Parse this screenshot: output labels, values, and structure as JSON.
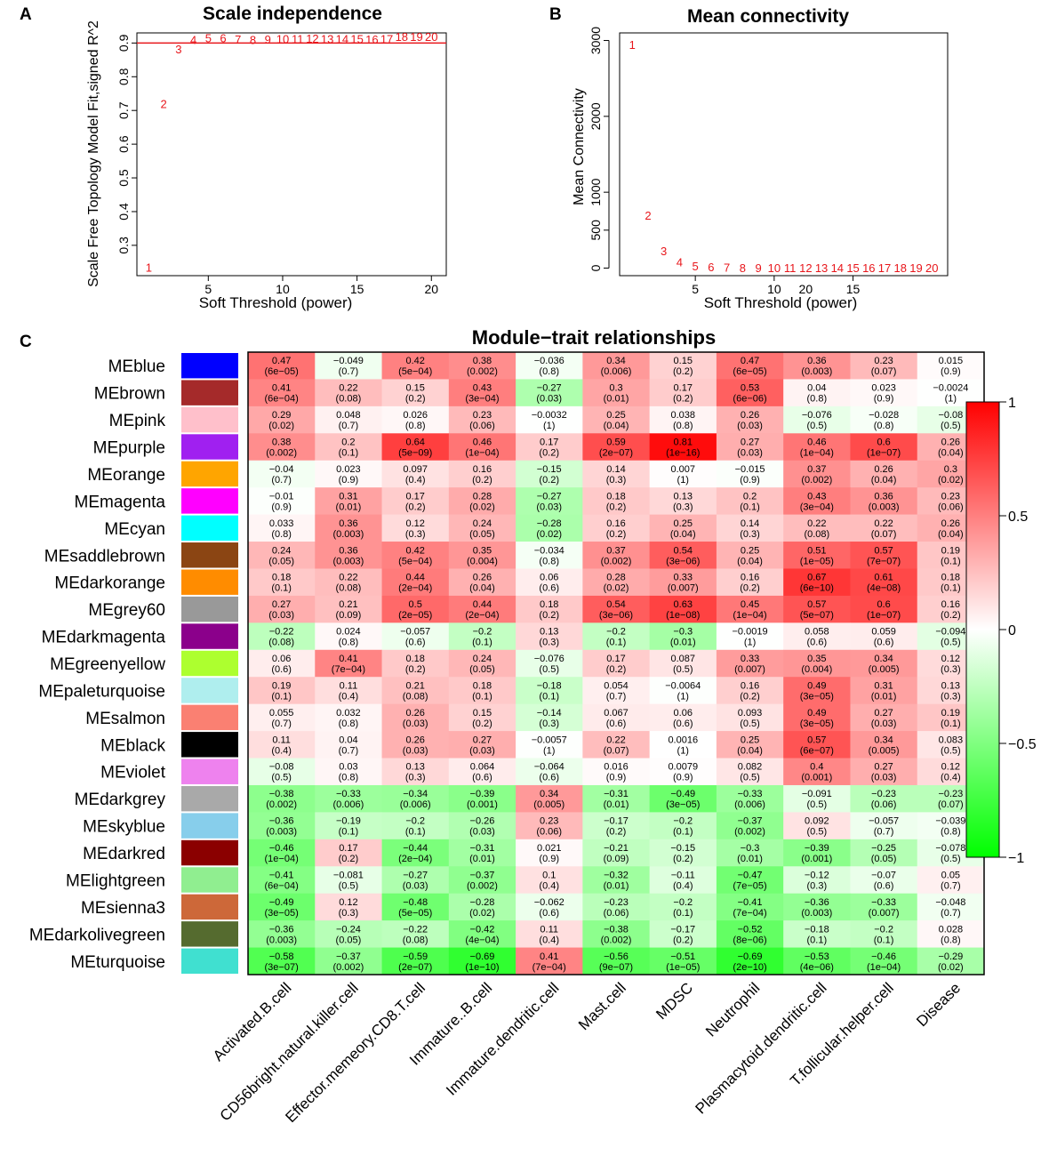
{
  "panels": {
    "a": {
      "label": "A"
    },
    "b": {
      "label": "B"
    },
    "c": {
      "label": "C"
    }
  },
  "colors": {
    "point": "#e8161b",
    "threshold_line": "#e8161b",
    "high": "#ff0000",
    "mid": "#ffffff",
    "low": "#00ff00"
  },
  "chart_data": [
    {
      "id": "scale-independence",
      "type": "scatter",
      "title": "Scale independence",
      "xlabel": "Soft Threshold (power)",
      "ylabel": "Scale Free Topology Model Fit,signed R^2",
      "xlim": [
        0.2,
        21
      ],
      "ylim": [
        0.21,
        0.93
      ],
      "xticks": [
        5,
        10,
        15,
        20
      ],
      "yticks": [
        0.3,
        0.4,
        0.5,
        0.6,
        0.7,
        0.8,
        0.9
      ],
      "threshold": 0.9,
      "points": [
        {
          "x": 1,
          "y": 0.235,
          "label": "1"
        },
        {
          "x": 2,
          "y": 0.72,
          "label": "2"
        },
        {
          "x": 3,
          "y": 0.882,
          "label": "3"
        },
        {
          "x": 4,
          "y": 0.91,
          "label": "4"
        },
        {
          "x": 5,
          "y": 0.915,
          "label": "5"
        },
        {
          "x": 6,
          "y": 0.915,
          "label": "6"
        },
        {
          "x": 7,
          "y": 0.912,
          "label": "7"
        },
        {
          "x": 8,
          "y": 0.91,
          "label": "8"
        },
        {
          "x": 9,
          "y": 0.912,
          "label": "9"
        },
        {
          "x": 10,
          "y": 0.913,
          "label": "10"
        },
        {
          "x": 11,
          "y": 0.913,
          "label": "11"
        },
        {
          "x": 12,
          "y": 0.914,
          "label": "12"
        },
        {
          "x": 13,
          "y": 0.913,
          "label": "13"
        },
        {
          "x": 14,
          "y": 0.913,
          "label": "14"
        },
        {
          "x": 15,
          "y": 0.913,
          "label": "15"
        },
        {
          "x": 16,
          "y": 0.912,
          "label": "16"
        },
        {
          "x": 17,
          "y": 0.913,
          "label": "17"
        },
        {
          "x": 18,
          "y": 0.92,
          "label": "18"
        },
        {
          "x": 19,
          "y": 0.92,
          "label": "19"
        },
        {
          "x": 20,
          "y": 0.92,
          "label": "20"
        }
      ]
    },
    {
      "id": "mean-connectivity",
      "type": "scatter",
      "title": "Mean connectivity",
      "xlabel": "Soft Threshold (power)",
      "ylabel": "Mean Connectivity",
      "xlim": [
        0.2,
        21
      ],
      "ylim": [
        -100,
        3100
      ],
      "xticks": [
        5,
        10,
        15
      ],
      "yticks": [
        0,
        500,
        1000,
        2000,
        3000
      ],
      "points": [
        {
          "x": 1,
          "y": 2950,
          "label": "1"
        },
        {
          "x": 2,
          "y": 700,
          "label": "2"
        },
        {
          "x": 3,
          "y": 230,
          "label": "3"
        },
        {
          "x": 4,
          "y": 80,
          "label": "4"
        },
        {
          "x": 5,
          "y": 30,
          "label": "5"
        },
        {
          "x": 6,
          "y": 15,
          "label": "6"
        },
        {
          "x": 7,
          "y": 10,
          "label": "7"
        },
        {
          "x": 8,
          "y": 8,
          "label": "8"
        },
        {
          "x": 9,
          "y": 6,
          "label": "9"
        },
        {
          "x": 10,
          "y": 5,
          "label": "10"
        },
        {
          "x": 11,
          "y": 5,
          "label": "11"
        },
        {
          "x": 12,
          "y": 5,
          "label": "12"
        },
        {
          "x": 13,
          "y": 5,
          "label": "13"
        },
        {
          "x": 14,
          "y": 5,
          "label": "14"
        },
        {
          "x": 15,
          "y": 5,
          "label": "15"
        },
        {
          "x": 16,
          "y": 5,
          "label": "16"
        },
        {
          "x": 17,
          "y": 5,
          "label": "17"
        },
        {
          "x": 18,
          "y": 5,
          "label": "18"
        },
        {
          "x": 19,
          "y": 5,
          "label": "19"
        },
        {
          "x": 20,
          "y": 5,
          "label": "20"
        }
      ],
      "extra_xtick_labels": [
        "20"
      ]
    },
    {
      "id": "module-trait",
      "type": "heatmap",
      "title": "Module−trait relationships",
      "colorbar": {
        "min": -1,
        "max": 1,
        "ticks": [
          "1",
          "0.5",
          "0",
          "−0.5",
          "−1"
        ]
      },
      "columns": [
        "Activated.B.cell",
        "CD56bright.natural.killer.cell",
        "Effector.memeory.CD8.T.cell",
        "Immature..B.cell",
        "Immature.dendritic.cell",
        "Mast.cell",
        "MDSC",
        "Neutrophil",
        "Plasmacytoid.dendritic.cell",
        "T.follicular.helper.cell",
        "Disease"
      ],
      "rows": [
        {
          "name": "MEblue",
          "color": "#0000ff",
          "r": [
            "0.47",
            "−0.049",
            "0.42",
            "0.38",
            "−0.036",
            "0.34",
            "0.15",
            "0.47",
            "0.36",
            "0.23",
            "0.015"
          ],
          "p": [
            "(6e−05)",
            "(0.7)",
            "(5e−04)",
            "(0.002)",
            "(0.8)",
            "(0.006)",
            "(0.2)",
            "(6e−05)",
            "(0.003)",
            "(0.07)",
            "(0.9)"
          ]
        },
        {
          "name": "MEbrown",
          "color": "#a52a2a",
          "r": [
            "0.41",
            "0.22",
            "0.15",
            "0.43",
            "−0.27",
            "0.3",
            "0.17",
            "0.53",
            "0.04",
            "0.023",
            "−0.0024"
          ],
          "p": [
            "(6e−04)",
            "(0.08)",
            "(0.2)",
            "(3e−04)",
            "(0.03)",
            "(0.01)",
            "(0.2)",
            "(6e−06)",
            "(0.8)",
            "(0.9)",
            "(1)"
          ]
        },
        {
          "name": "MEpink",
          "color": "#ffc0cb",
          "r": [
            "0.29",
            "0.048",
            "0.026",
            "0.23",
            "−0.0032",
            "0.25",
            "0.038",
            "0.26",
            "−0.076",
            "−0.028",
            "−0.08"
          ],
          "p": [
            "(0.02)",
            "(0.7)",
            "(0.8)",
            "(0.06)",
            "(1)",
            "(0.04)",
            "(0.8)",
            "(0.03)",
            "(0.5)",
            "(0.8)",
            "(0.5)"
          ]
        },
        {
          "name": "MEpurple",
          "color": "#a020f0",
          "r": [
            "0.38",
            "0.2",
            "0.64",
            "0.46",
            "0.17",
            "0.59",
            "0.81",
            "0.27",
            "0.46",
            "0.6",
            "0.26"
          ],
          "p": [
            "(0.002)",
            "(0.1)",
            "(5e−09)",
            "(1e−04)",
            "(0.2)",
            "(2e−07)",
            "(1e−16)",
            "(0.03)",
            "(1e−04)",
            "(1e−07)",
            "(0.04)"
          ]
        },
        {
          "name": "MEorange",
          "color": "#ffa500",
          "r": [
            "−0.04",
            "0.023",
            "0.097",
            "0.16",
            "−0.15",
            "0.14",
            "0.007",
            "−0.015",
            "0.37",
            "0.26",
            "0.3"
          ],
          "p": [
            "(0.7)",
            "(0.9)",
            "(0.4)",
            "(0.2)",
            "(0.2)",
            "(0.3)",
            "(1)",
            "(0.9)",
            "(0.002)",
            "(0.04)",
            "(0.02)"
          ]
        },
        {
          "name": "MEmagenta",
          "color": "#ff00ff",
          "r": [
            "−0.01",
            "0.31",
            "0.17",
            "0.28",
            "−0.27",
            "0.18",
            "0.13",
            "0.2",
            "0.43",
            "0.36",
            "0.23"
          ],
          "p": [
            "(0.9)",
            "(0.01)",
            "(0.2)",
            "(0.02)",
            "(0.03)",
            "(0.2)",
            "(0.3)",
            "(0.1)",
            "(3e−04)",
            "(0.003)",
            "(0.06)"
          ]
        },
        {
          "name": "MEcyan",
          "color": "#00ffff",
          "r": [
            "0.033",
            "0.36",
            "0.12",
            "0.24",
            "−0.28",
            "0.16",
            "0.25",
            "0.14",
            "0.22",
            "0.22",
            "0.26"
          ],
          "p": [
            "(0.8)",
            "(0.003)",
            "(0.3)",
            "(0.05)",
            "(0.02)",
            "(0.2)",
            "(0.04)",
            "(0.3)",
            "(0.08)",
            "(0.07)",
            "(0.04)"
          ]
        },
        {
          "name": "MEsaddlebrown",
          "color": "#8b4513",
          "r": [
            "0.24",
            "0.36",
            "0.42",
            "0.35",
            "−0.034",
            "0.37",
            "0.54",
            "0.25",
            "0.51",
            "0.57",
            "0.19"
          ],
          "p": [
            "(0.05)",
            "(0.003)",
            "(5e−04)",
            "(0.004)",
            "(0.8)",
            "(0.002)",
            "(3e−06)",
            "(0.04)",
            "(1e−05)",
            "(7e−07)",
            "(0.1)"
          ]
        },
        {
          "name": "MEdarkorange",
          "color": "#ff8c00",
          "r": [
            "0.18",
            "0.22",
            "0.44",
            "0.26",
            "0.06",
            "0.28",
            "0.33",
            "0.16",
            "0.67",
            "0.61",
            "0.18"
          ],
          "p": [
            "(0.1)",
            "(0.08)",
            "(2e−04)",
            "(0.04)",
            "(0.6)",
            "(0.02)",
            "(0.007)",
            "(0.2)",
            "(6e−10)",
            "(4e−08)",
            "(0.1)"
          ]
        },
        {
          "name": "MEgrey60",
          "color": "#999999",
          "r": [
            "0.27",
            "0.21",
            "0.5",
            "0.44",
            "0.18",
            "0.54",
            "0.63",
            "0.45",
            "0.57",
            "0.6",
            "0.16"
          ],
          "p": [
            "(0.03)",
            "(0.09)",
            "(2e−05)",
            "(2e−04)",
            "(0.2)",
            "(3e−06)",
            "(1e−08)",
            "(1e−04)",
            "(5e−07)",
            "(1e−07)",
            "(0.2)"
          ]
        },
        {
          "name": "MEdarkmagenta",
          "color": "#8b008b",
          "r": [
            "−0.22",
            "0.024",
            "−0.057",
            "−0.2",
            "0.13",
            "−0.2",
            "−0.3",
            "−0.0019",
            "0.058",
            "0.059",
            "−0.094"
          ],
          "p": [
            "(0.08)",
            "(0.8)",
            "(0.6)",
            "(0.1)",
            "(0.3)",
            "(0.1)",
            "(0.01)",
            "(1)",
            "(0.6)",
            "(0.6)",
            "(0.5)"
          ]
        },
        {
          "name": "MEgreenyellow",
          "color": "#adff2f",
          "r": [
            "0.06",
            "0.41",
            "0.18",
            "0.24",
            "−0.076",
            "0.17",
            "0.087",
            "0.33",
            "0.35",
            "0.34",
            "0.12"
          ],
          "p": [
            "(0.6)",
            "(7e−04)",
            "(0.2)",
            "(0.05)",
            "(0.5)",
            "(0.2)",
            "(0.5)",
            "(0.007)",
            "(0.004)",
            "(0.005)",
            "(0.3)"
          ]
        },
        {
          "name": "MEpaleturquoise",
          "color": "#afeeee",
          "r": [
            "0.19",
            "0.11",
            "0.21",
            "0.18",
            "−0.18",
            "0.054",
            "−0.0064",
            "0.16",
            "0.49",
            "0.31",
            "0.13"
          ],
          "p": [
            "(0.1)",
            "(0.4)",
            "(0.08)",
            "(0.1)",
            "(0.1)",
            "(0.7)",
            "(1)",
            "(0.2)",
            "(3e−05)",
            "(0.01)",
            "(0.3)"
          ]
        },
        {
          "name": "MEsalmon",
          "color": "#fa8072",
          "r": [
            "0.055",
            "0.032",
            "0.26",
            "0.15",
            "−0.14",
            "0.067",
            "0.06",
            "0.093",
            "0.49",
            "0.27",
            "0.19"
          ],
          "p": [
            "(0.7)",
            "(0.8)",
            "(0.03)",
            "(0.2)",
            "(0.3)",
            "(0.6)",
            "(0.6)",
            "(0.5)",
            "(3e−05)",
            "(0.03)",
            "(0.1)"
          ]
        },
        {
          "name": "MEblack",
          "color": "#000000",
          "r": [
            "0.11",
            "0.04",
            "0.26",
            "0.27",
            "−0.0057",
            "0.22",
            "0.0016",
            "0.25",
            "0.57",
            "0.34",
            "0.083"
          ],
          "p": [
            "(0.4)",
            "(0.7)",
            "(0.03)",
            "(0.03)",
            "(1)",
            "(0.07)",
            "(1)",
            "(0.04)",
            "(6e−07)",
            "(0.005)",
            "(0.5)"
          ]
        },
        {
          "name": "MEviolet",
          "color": "#ee82ee",
          "r": [
            "−0.08",
            "0.03",
            "0.13",
            "0.064",
            "−0.064",
            "0.016",
            "0.0079",
            "0.082",
            "0.4",
            "0.27",
            "0.12"
          ],
          "p": [
            "(0.5)",
            "(0.8)",
            "(0.3)",
            "(0.6)",
            "(0.6)",
            "(0.9)",
            "(0.9)",
            "(0.5)",
            "(0.001)",
            "(0.03)",
            "(0.4)"
          ]
        },
        {
          "name": "MEdarkgrey",
          "color": "#a9a9a9",
          "r": [
            "−0.38",
            "−0.33",
            "−0.34",
            "−0.39",
            "0.34",
            "−0.31",
            "−0.49",
            "−0.33",
            "−0.091",
            "−0.23",
            "−0.23"
          ],
          "p": [
            "(0.002)",
            "(0.006)",
            "(0.006)",
            "(0.001)",
            "(0.005)",
            "(0.01)",
            "(3e−05)",
            "(0.006)",
            "(0.5)",
            "(0.06)",
            "(0.07)"
          ]
        },
        {
          "name": "MEskyblue",
          "color": "#87ceeb",
          "r": [
            "−0.36",
            "−0.19",
            "−0.2",
            "−0.26",
            "0.23",
            "−0.17",
            "−0.2",
            "−0.37",
            "0.092",
            "−0.057",
            "−0.039"
          ],
          "p": [
            "(0.003)",
            "(0.1)",
            "(0.1)",
            "(0.03)",
            "(0.06)",
            "(0.2)",
            "(0.1)",
            "(0.002)",
            "(0.5)",
            "(0.7)",
            "(0.8)"
          ]
        },
        {
          "name": "MEdarkred",
          "color": "#8b0000",
          "r": [
            "−0.46",
            "0.17",
            "−0.44",
            "−0.31",
            "0.021",
            "−0.21",
            "−0.15",
            "−0.3",
            "−0.39",
            "−0.25",
            "−0.078"
          ],
          "p": [
            "(1e−04)",
            "(0.2)",
            "(2e−04)",
            "(0.01)",
            "(0.9)",
            "(0.09)",
            "(0.2)",
            "(0.01)",
            "(0.001)",
            "(0.05)",
            "(0.5)"
          ]
        },
        {
          "name": "MElightgreen",
          "color": "#90ee90",
          "r": [
            "−0.41",
            "−0.081",
            "−0.27",
            "−0.37",
            "0.1",
            "−0.32",
            "−0.11",
            "−0.47",
            "−0.12",
            "−0.07",
            "0.05"
          ],
          "p": [
            "(6e−04)",
            "(0.5)",
            "(0.03)",
            "(0.002)",
            "(0.4)",
            "(0.01)",
            "(0.4)",
            "(7e−05)",
            "(0.3)",
            "(0.6)",
            "(0.7)"
          ]
        },
        {
          "name": "MEsienna3",
          "color": "#cd6839",
          "r": [
            "−0.49",
            "0.12",
            "−0.48",
            "−0.28",
            "−0.062",
            "−0.23",
            "−0.2",
            "−0.41",
            "−0.36",
            "−0.33",
            "−0.048"
          ],
          "p": [
            "(3e−05)",
            "(0.3)",
            "(5e−05)",
            "(0.02)",
            "(0.6)",
            "(0.06)",
            "(0.1)",
            "(7e−04)",
            "(0.003)",
            "(0.007)",
            "(0.7)"
          ]
        },
        {
          "name": "MEdarkolivegreen",
          "color": "#556b2f",
          "r": [
            "−0.36",
            "−0.24",
            "−0.22",
            "−0.42",
            "0.11",
            "−0.38",
            "−0.17",
            "−0.52",
            "−0.18",
            "−0.2",
            "0.028"
          ],
          "p": [
            "(0.003)",
            "(0.05)",
            "(0.08)",
            "(4e−04)",
            "(0.4)",
            "(0.002)",
            "(0.2)",
            "(8e−06)",
            "(0.1)",
            "(0.1)",
            "(0.8)"
          ]
        },
        {
          "name": "MEturquoise",
          "color": "#40e0d0",
          "r": [
            "−0.58",
            "−0.37",
            "−0.59",
            "−0.69",
            "0.41",
            "−0.56",
            "−0.51",
            "−0.69",
            "−0.53",
            "−0.46",
            "−0.29"
          ],
          "p": [
            "(3e−07)",
            "(0.002)",
            "(2e−07)",
            "(1e−10)",
            "(7e−04)",
            "(9e−07)",
            "(1e−05)",
            "(2e−10)",
            "(4e−06)",
            "(1e−04)",
            "(0.02)"
          ]
        }
      ]
    }
  ]
}
